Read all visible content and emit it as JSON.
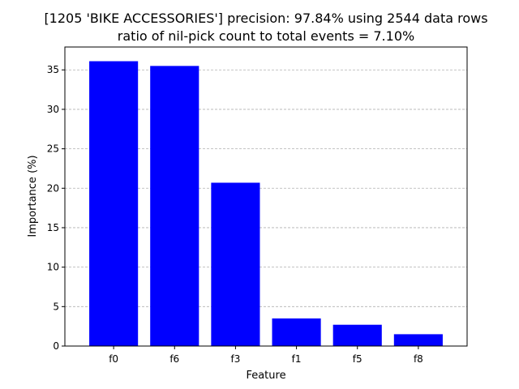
{
  "chart_data": {
    "type": "bar",
    "title_line1": "[1205 'BIKE ACCESSORIES'] precision: 97.84% using 2544 data rows",
    "title_line2": "ratio of nil-pick count to total events = 7.10%",
    "xlabel": "Feature",
    "ylabel": "Importance (%)",
    "categories": [
      "f0",
      "f6",
      "f3",
      "f1",
      "f5",
      "f8"
    ],
    "values": [
      36.1,
      35.5,
      20.7,
      3.5,
      2.7,
      1.5
    ],
    "ylim": [
      0,
      37.9
    ],
    "yticks": [
      0,
      5,
      10,
      15,
      20,
      25,
      30,
      35
    ],
    "grid": "horizontal dashed",
    "bar_color": "#0000ff",
    "grid_color": "#b0b0b0"
  }
}
